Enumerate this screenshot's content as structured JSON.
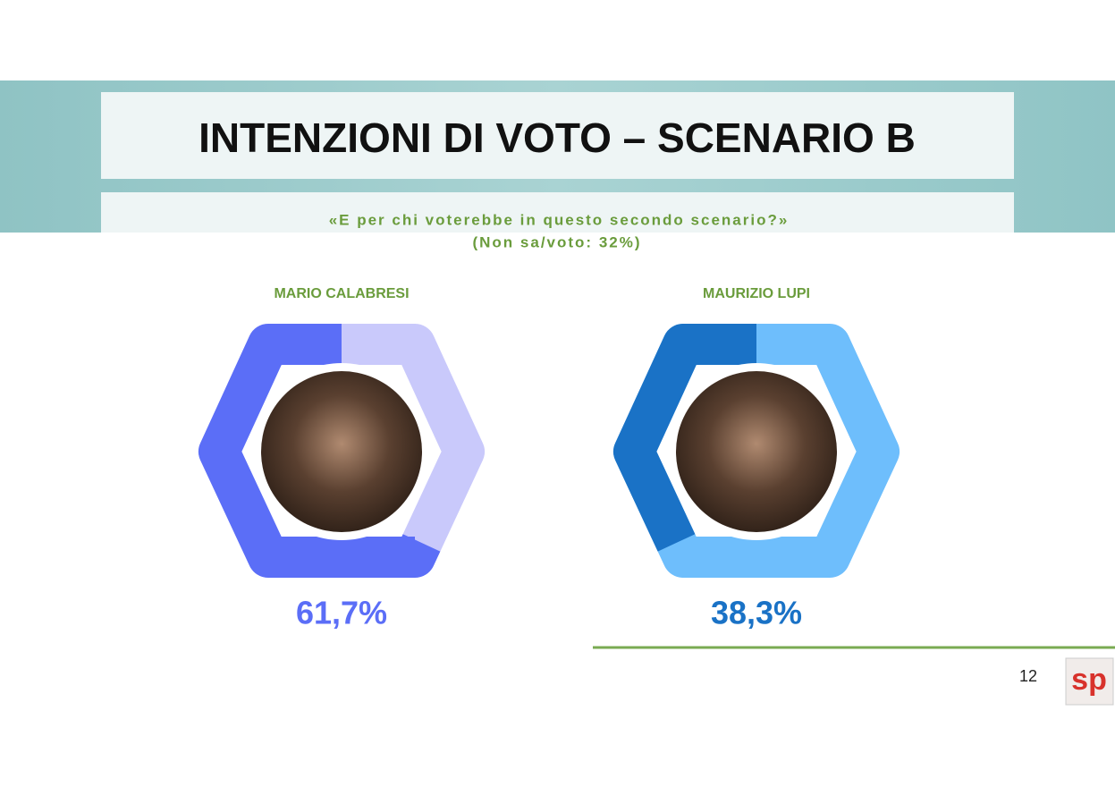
{
  "title": "INTENZIONI DI VOTO – SCENARIO B",
  "question": "«E per chi voterebbe in questo secondo scenario?»",
  "note": "(Non sa/voto: 32%)",
  "page_number": "12",
  "logo": "sp",
  "chart_data": [
    {
      "type": "donut",
      "title": "MARIO CALABRESI",
      "values": [
        61.7
      ],
      "value_labels": [
        "61,7%"
      ],
      "color": "#5b6ef7",
      "track_color": "#c9c9fb"
    },
    {
      "type": "donut",
      "title": "MAURIZIO LUPI",
      "values": [
        38.3
      ],
      "value_labels": [
        "38,3%"
      ],
      "color": "#1a72c6",
      "track_color": "#6ebefc"
    }
  ]
}
